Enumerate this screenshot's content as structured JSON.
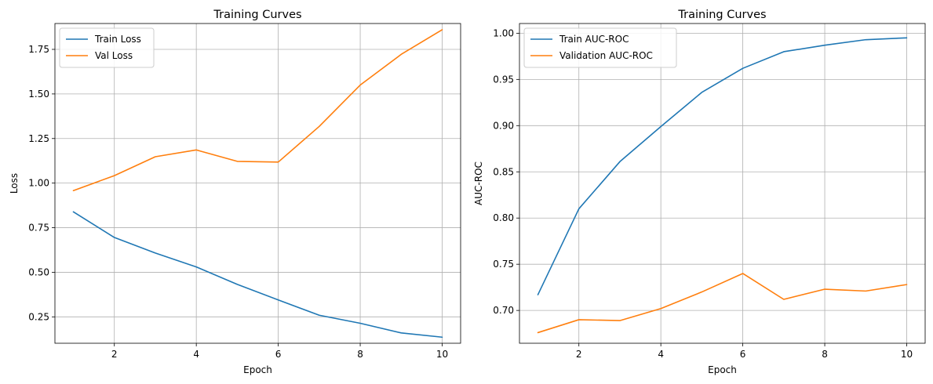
{
  "figure": {
    "background": "#ffffff",
    "grid_color": "#b0b0b0",
    "colors": [
      "#1f77b4",
      "#ff7f0e"
    ]
  },
  "chart_data": [
    {
      "type": "line",
      "title": "Training Curves",
      "xlabel": "Epoch",
      "ylabel": "Loss",
      "x": [
        1,
        2,
        3,
        4,
        5,
        6,
        7,
        8,
        9,
        10
      ],
      "xlim": [
        0.55,
        10.45
      ],
      "ylim": [
        0.102,
        1.895
      ],
      "xticks": [
        2,
        4,
        6,
        8,
        10
      ],
      "yticks": [
        0.25,
        0.5,
        0.75,
        1.0,
        1.25,
        1.5,
        1.75
      ],
      "ytick_labels": [
        "0.25",
        "0.50",
        "0.75",
        "1.00",
        "1.25",
        "1.50",
        "1.75"
      ],
      "grid": true,
      "legend_position": "top-left",
      "series": [
        {
          "name": "Train Loss",
          "color": "#1f77b4",
          "values": [
            0.839,
            0.695,
            0.608,
            0.53,
            0.432,
            0.345,
            0.259,
            0.214,
            0.16,
            0.136
          ]
        },
        {
          "name": "Val Loss",
          "color": "#ff7f0e",
          "values": [
            0.958,
            1.042,
            1.148,
            1.186,
            1.122,
            1.118,
            1.318,
            1.55,
            1.722,
            1.86
          ]
        }
      ]
    },
    {
      "type": "line",
      "title": "Training Curves",
      "xlabel": "Epoch",
      "ylabel": "AUC-ROC",
      "x": [
        1,
        2,
        3,
        4,
        5,
        6,
        7,
        8,
        9,
        10
      ],
      "xlim": [
        0.55,
        10.45
      ],
      "ylim": [
        0.6645,
        1.0105
      ],
      "xticks": [
        2,
        4,
        6,
        8,
        10
      ],
      "yticks": [
        0.7,
        0.75,
        0.8,
        0.85,
        0.9,
        0.95,
        1.0
      ],
      "ytick_labels": [
        "0.70",
        "0.75",
        "0.80",
        "0.85",
        "0.90",
        "0.95",
        "1.00"
      ],
      "grid": true,
      "legend_position": "top-left",
      "series": [
        {
          "name": "Train AUC-ROC",
          "color": "#1f77b4",
          "values": [
            0.717,
            0.81,
            0.861,
            0.899,
            0.936,
            0.962,
            0.98,
            0.987,
            0.993,
            0.995
          ]
        },
        {
          "name": "Validation AUC-ROC",
          "color": "#ff7f0e",
          "values": [
            0.676,
            0.69,
            0.689,
            0.702,
            0.72,
            0.74,
            0.712,
            0.723,
            0.721,
            0.728
          ]
        }
      ]
    }
  ]
}
